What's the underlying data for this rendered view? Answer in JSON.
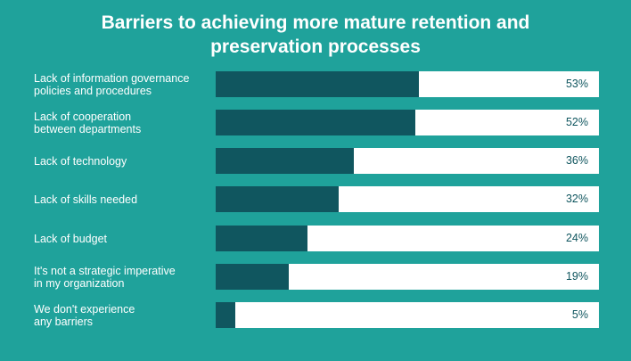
{
  "chart_data": {
    "type": "bar",
    "orientation": "horizontal",
    "title": [
      "Barriers to achieving more mature retention and",
      "preservation processes"
    ],
    "categories": [
      [
        "Lack of information governance",
        "policies and procedures"
      ],
      [
        "Lack of cooperation",
        "between departments"
      ],
      [
        "Lack of technology"
      ],
      [
        "Lack of skills needed"
      ],
      [
        "Lack of budget"
      ],
      [
        "It's not a strategic imperative",
        "in my organization"
      ],
      [
        "We don't experience",
        "any barriers"
      ]
    ],
    "values": [
      53,
      52,
      36,
      32,
      24,
      19,
      5
    ],
    "value_labels": [
      "53%",
      "52%",
      "36%",
      "32%",
      "24%",
      "19%",
      "5%"
    ],
    "xlim": [
      0,
      100
    ],
    "xlabel": "",
    "ylabel": "",
    "grid": false,
    "colors": {
      "background": "#1fa29b",
      "bar": "#10565f",
      "track": "#ffffff"
    }
  }
}
